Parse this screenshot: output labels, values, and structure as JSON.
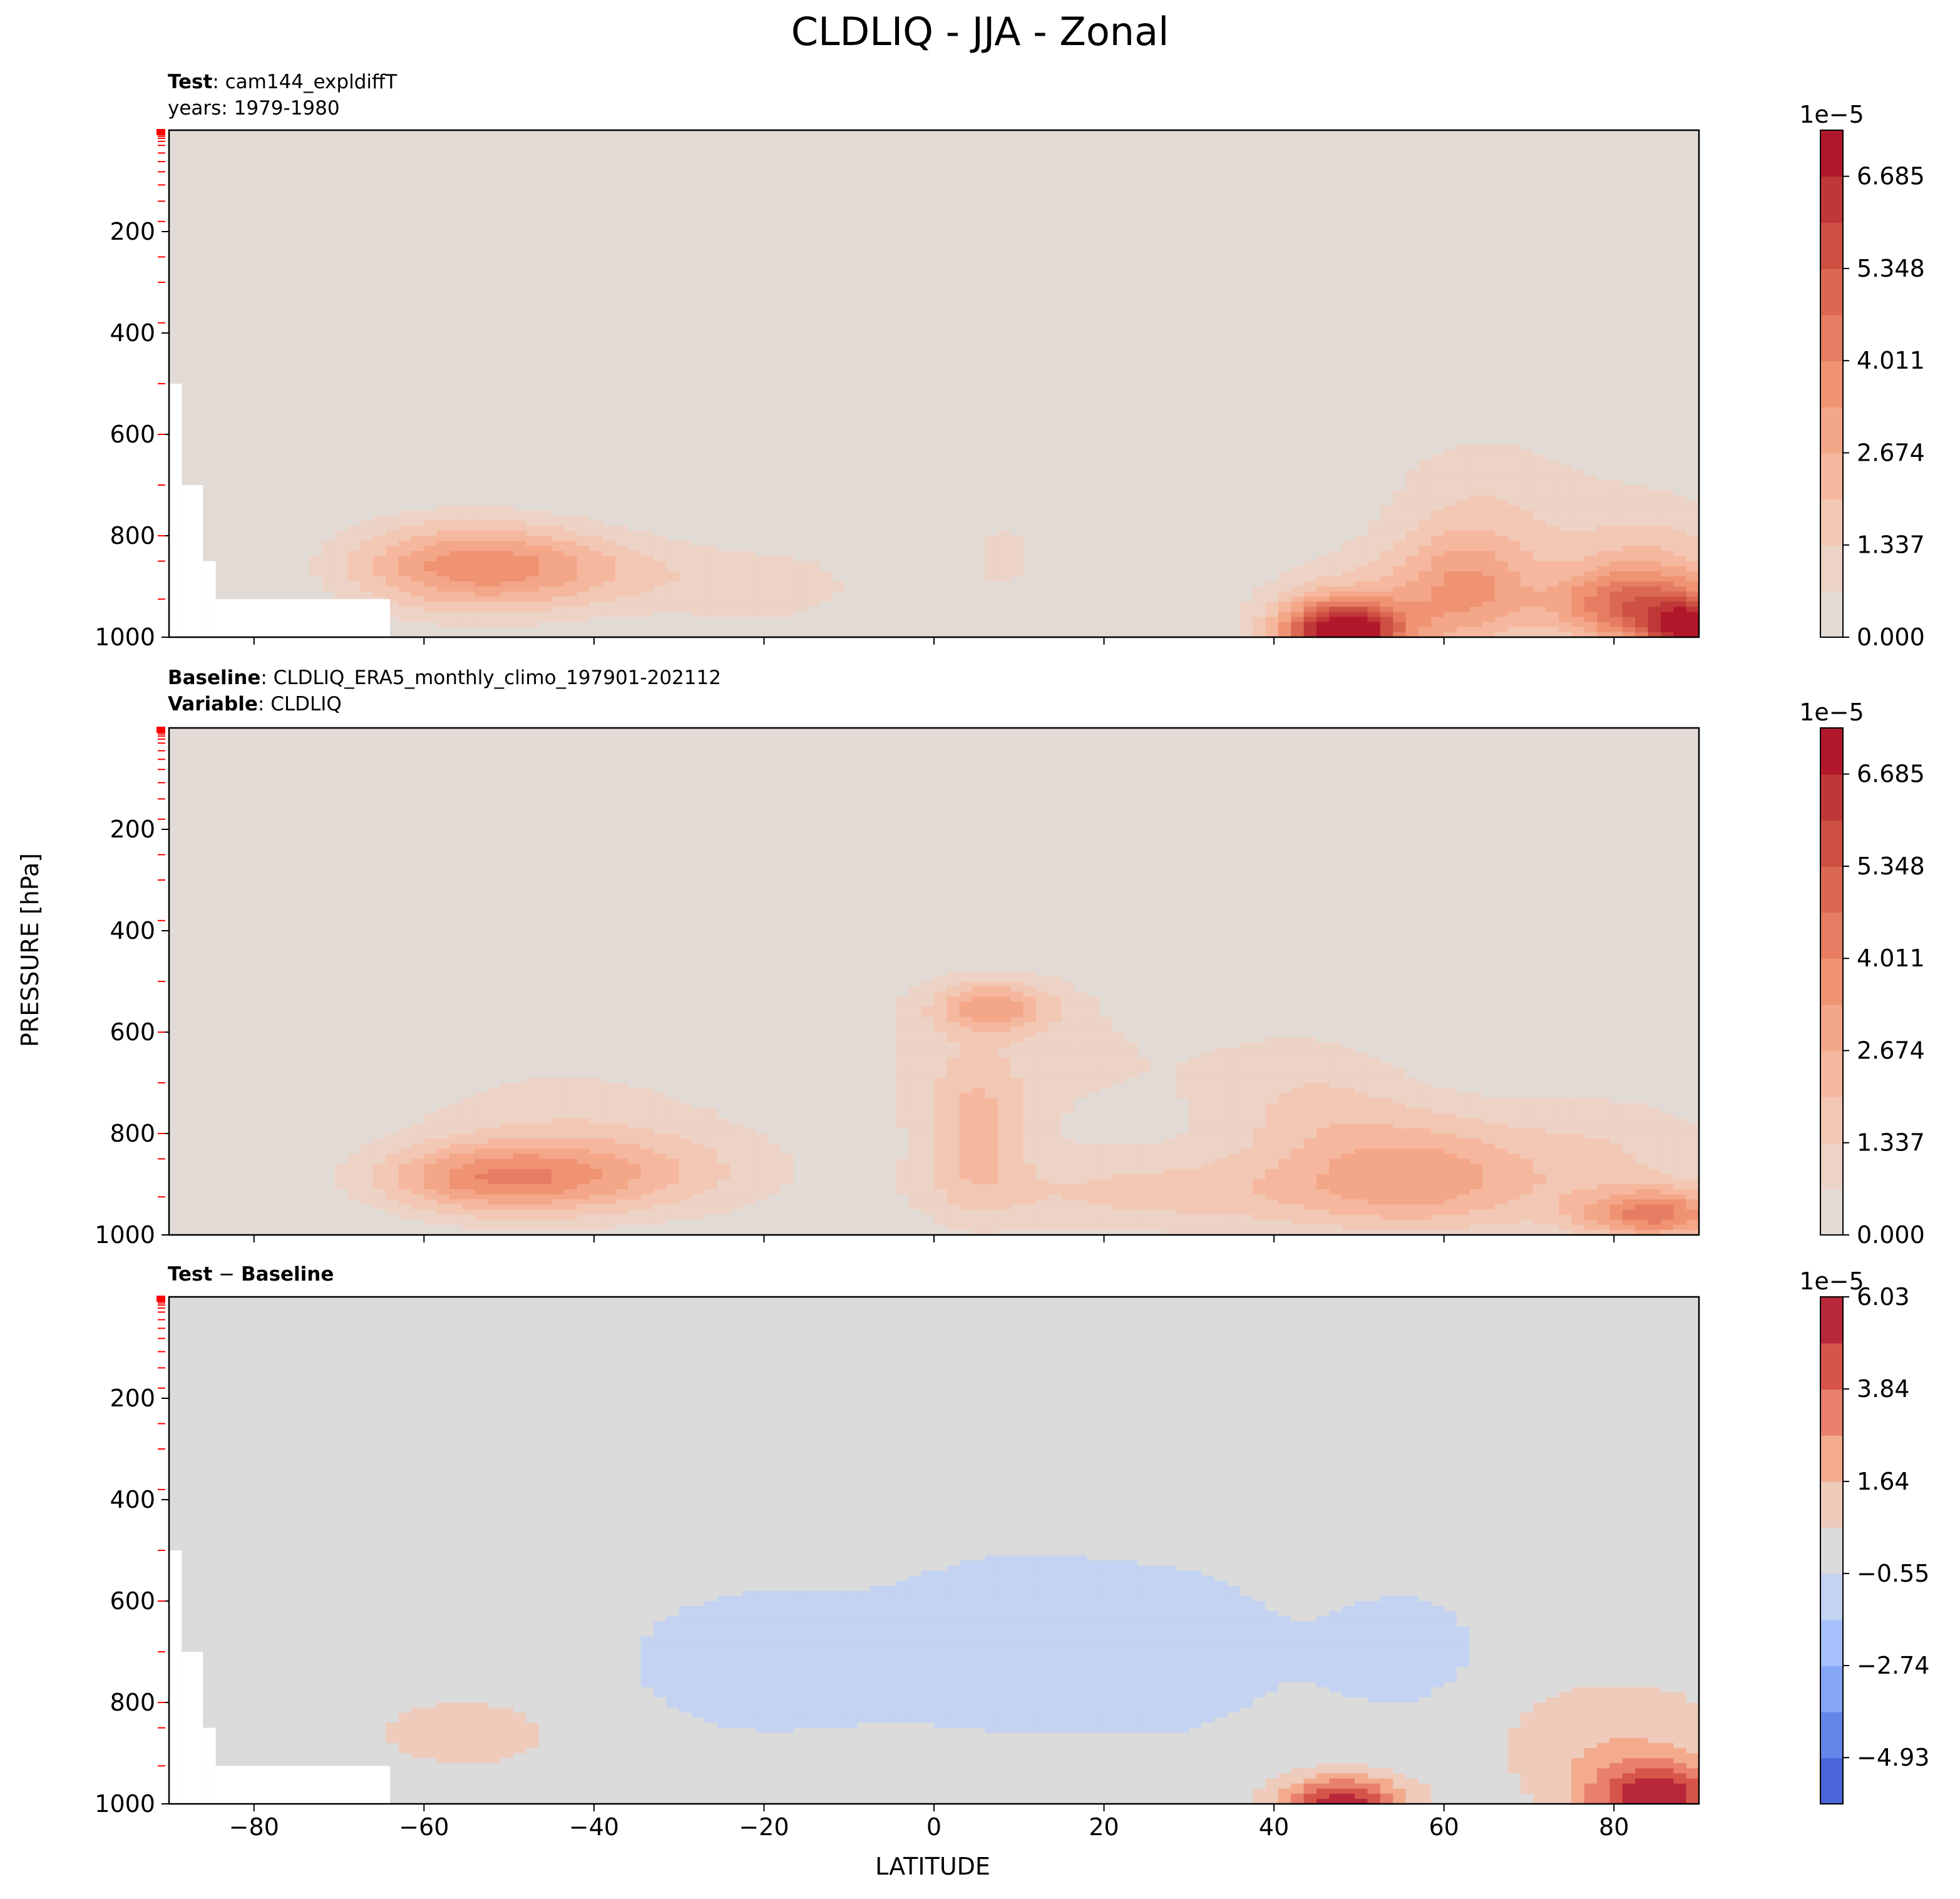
{
  "figure": {
    "title": "CLDLIQ - JJA - Zonal",
    "xlabel": "LATITUDE",
    "ylabel": "PRESSURE [hPa]"
  },
  "panels": {
    "test": {
      "line1_bold": "Test",
      "line1_rest": ": cam144_expldiffT",
      "line2": "years: 1979-1980"
    },
    "baseline": {
      "line1_bold": "Baseline",
      "line1_rest": ": CLDLIQ_ERA5_monthly_climo_197901-202112",
      "line2_bold": "Variable",
      "line2_rest": ": CLDLIQ"
    },
    "diff": {
      "bold1": "Test",
      "minus": " − ",
      "bold2": "Baseline"
    }
  },
  "chart_data": [
    {
      "type": "heatmap",
      "panel": "Test",
      "xlabel": "LATITUDE",
      "ylabel": "PRESSURE [hPa]",
      "xlim": [
        -90,
        90
      ],
      "ylim": [
        1000,
        0
      ],
      "xticks": [
        -80,
        -60,
        -40,
        -20,
        0,
        20,
        40,
        60,
        80
      ],
      "yticks": [
        200,
        400,
        600,
        800,
        1000
      ],
      "colorbar": {
        "scale_label": "1e−5",
        "ticks": [
          "0.000",
          "1.337",
          "2.674",
          "4.011",
          "5.348",
          "6.685"
        ],
        "levels": [
          0.0,
          0.669,
          1.337,
          2.006,
          2.674,
          3.343,
          4.011,
          4.68,
          5.348,
          6.017,
          6.685,
          7.354
        ],
        "colors": [
          "#e2dad5",
          "#ecd3c6",
          "#f2c8b4",
          "#f5b89e",
          "#f4a688",
          "#ef9373",
          "#e67d62",
          "#db6851",
          "#cd5042",
          "#c03738",
          "#b2182b"
        ]
      },
      "features": [
        {
          "lat": -55,
          "pressure": 850,
          "value": 3.6,
          "note": "southern low-level cloud-liquid maximum"
        },
        {
          "lat": 8,
          "pressure": 850,
          "value": 1.0
        },
        {
          "lat": 48,
          "pressure": 990,
          "value": 7.0
        },
        {
          "lat": 88,
          "pressure": 980,
          "value": 7.3
        },
        {
          "lat": 65,
          "pressure": 700,
          "value": 1.0
        }
      ],
      "masked_region": "topography near -90 to -65 latitude"
    },
    {
      "type": "heatmap",
      "panel": "Baseline",
      "xlabel": "LATITUDE",
      "ylabel": "PRESSURE [hPa]",
      "xlim": [
        -90,
        90
      ],
      "ylim": [
        1000,
        0
      ],
      "xticks": [
        -80,
        -60,
        -40,
        -20,
        0,
        20,
        40,
        60,
        80
      ],
      "yticks": [
        200,
        400,
        600,
        800,
        1000
      ],
      "colorbar": {
        "scale_label": "1e−5",
        "ticks": [
          "0.000",
          "1.337",
          "2.674",
          "4.011",
          "5.348",
          "6.685"
        ],
        "levels": [
          0.0,
          0.669,
          1.337,
          2.006,
          2.674,
          3.343,
          4.011,
          4.68,
          5.348,
          6.017,
          6.685,
          7.354
        ],
        "colors": [
          "#e2dad5",
          "#ecd3c6",
          "#f2c8b4",
          "#f5b89e",
          "#f4a688",
          "#ef9373",
          "#e67d62",
          "#db6851",
          "#cd5042",
          "#c03738",
          "#b2182b"
        ]
      },
      "features": [
        {
          "lat": -50,
          "pressure": 890,
          "value": 3.5
        },
        {
          "lat": 7,
          "pressure": 550,
          "value": 2.8
        },
        {
          "lat": 60,
          "pressure": 880,
          "value": 2.7
        },
        {
          "lat": 85,
          "pressure": 960,
          "value": 4.2
        }
      ]
    },
    {
      "type": "heatmap",
      "panel": "Test − Baseline",
      "xlabel": "LATITUDE",
      "ylabel": "PRESSURE [hPa]",
      "xlim": [
        -90,
        90
      ],
      "ylim": [
        1000,
        0
      ],
      "xticks": [
        -80,
        -60,
        -40,
        -20,
        0,
        20,
        40,
        60,
        80
      ],
      "yticks": [
        200,
        400,
        600,
        800,
        1000
      ],
      "colorbar": {
        "scale_label": "1e−5",
        "ticks": [
          "−4.93",
          "−2.74",
          "−0.55",
          "1.64",
          "3.84",
          "6.03"
        ],
        "levels": [
          -6.03,
          -4.93,
          -3.84,
          -2.74,
          -1.64,
          -0.55,
          0.55,
          1.64,
          2.74,
          3.84,
          4.93,
          6.03
        ],
        "colors": [
          "#4a66d8",
          "#6685ea",
          "#86a6f8",
          "#a6c0fb",
          "#c4d3f1",
          "#dbdbdb",
          "#eecbbb",
          "#f3aa8d",
          "#e8806b",
          "#d65549",
          "#b8273a"
        ]
      },
      "features": [
        {
          "lat": -55,
          "pressure": 850,
          "value": 1.0
        },
        {
          "lat": 0,
          "pressure": 700,
          "value": -1.0,
          "note": "tropical free-troposphere negative difference"
        },
        {
          "lat": 48,
          "pressure": 990,
          "value": 5.5
        },
        {
          "lat": 88,
          "pressure": 990,
          "value": 5.8
        }
      ],
      "masked_region": "topography near -90 to -65 latitude"
    }
  ]
}
